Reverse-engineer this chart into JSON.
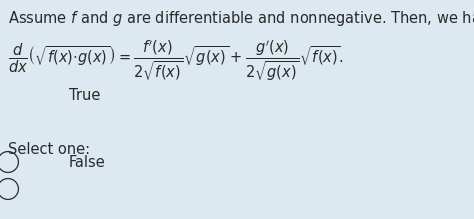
{
  "bg_color": "#dce9f0",
  "title_text": "Assume $\\mathit{f}$ and $\\mathit{g}$ are differentiable and nonnegative. Then, we have",
  "formula": "$\\dfrac{d}{dx}\\left(\\sqrt{f(x){\\cdot}g(x)}\\right) = \\dfrac{f'(x)}{2\\sqrt{f(x)}}\\sqrt{g(x)} + \\dfrac{g'(x)}{2\\sqrt{g(x)}}\\sqrt{f(x)}.$",
  "select_text": "Select one:",
  "option1": "True",
  "option2": "False",
  "text_color": "#2a2a2a",
  "bg_color_rgb": [
    0.863,
    0.914,
    0.941
  ],
  "font_size_title": 10.5,
  "font_size_formula": 10.5,
  "font_size_options": 10.5,
  "fig_width": 4.74,
  "fig_height": 2.19,
  "dpi": 100
}
